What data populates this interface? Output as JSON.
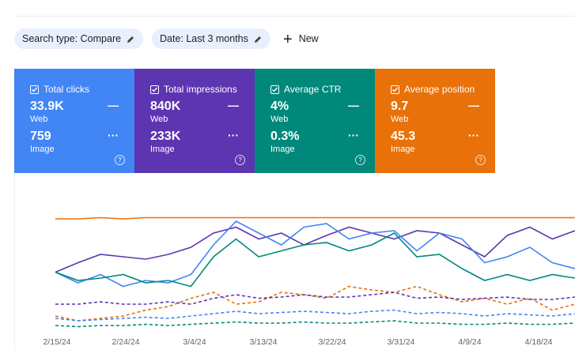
{
  "filters": [
    "Search type: Compare",
    "Date: Last 3 months"
  ],
  "new_button": "New",
  "cards": [
    {
      "label": "Total clicks",
      "color": "#4285f4",
      "items": [
        {
          "value": "33.9K",
          "type": "Web"
        },
        {
          "value": "759",
          "type": "Image"
        }
      ]
    },
    {
      "label": "Total impressions",
      "color": "#5e35b1",
      "items": [
        {
          "value": "840K",
          "type": "Web"
        },
        {
          "value": "233K",
          "type": "Image"
        }
      ]
    },
    {
      "label": "Average CTR",
      "color": "#00897b",
      "items": [
        {
          "value": "4%",
          "type": "Web"
        },
        {
          "value": "0.3%",
          "type": "Image"
        }
      ]
    },
    {
      "label": "Average position",
      "color": "#e8710a",
      "items": [
        {
          "value": "9.7",
          "type": "Web"
        },
        {
          "value": "45.3",
          "type": "Image"
        }
      ]
    }
  ],
  "chart_data": {
    "type": "line",
    "xtick_labels": [
      "2/15/24",
      "2/24/24",
      "3/4/24",
      "3/13/24",
      "3/22/24",
      "3/31/24",
      "4/9/24",
      "4/18/24"
    ],
    "ylim": [
      0,
      100
    ],
    "series": [
      {
        "color": "#e8710a",
        "dashed": false,
        "values": [
          92,
          92,
          93,
          92,
          93,
          93,
          93,
          93,
          93,
          93,
          93,
          93,
          93,
          93,
          93,
          93,
          93,
          93,
          93,
          93,
          93,
          93,
          93,
          93
        ]
      },
      {
        "color": "#5e35b1",
        "dashed": false,
        "values": [
          47,
          55,
          62,
          60,
          58,
          62,
          68,
          80,
          85,
          75,
          80,
          70,
          78,
          85,
          80,
          75,
          82,
          80,
          70,
          60,
          78,
          85,
          75,
          82
        ]
      },
      {
        "color": "#4285f4",
        "dashed": false,
        "values": [
          47,
          38,
          45,
          35,
          40,
          38,
          45,
          70,
          90,
          80,
          70,
          85,
          88,
          75,
          80,
          82,
          65,
          80,
          75,
          55,
          60,
          68,
          55,
          50
        ]
      },
      {
        "color": "#00897b",
        "dashed": false,
        "values": [
          47,
          40,
          42,
          45,
          38,
          40,
          35,
          60,
          75,
          60,
          65,
          70,
          72,
          65,
          70,
          80,
          60,
          62,
          50,
          40,
          45,
          40,
          45,
          42
        ]
      },
      {
        "color": "#e8710a",
        "dashed": true,
        "values": [
          10,
          6,
          8,
          10,
          15,
          18,
          25,
          30,
          20,
          22,
          30,
          28,
          25,
          35,
          32,
          30,
          35,
          28,
          22,
          25,
          20,
          25,
          15,
          20
        ]
      },
      {
        "color": "#5e35b1",
        "dashed": true,
        "values": [
          20,
          20,
          22,
          20,
          20,
          22,
          20,
          25,
          28,
          25,
          26,
          28,
          26,
          26,
          28,
          30,
          25,
          26,
          24,
          25,
          26,
          24,
          24,
          26
        ]
      },
      {
        "color": "#4285f4",
        "dashed": true,
        "values": [
          8,
          6,
          7,
          8,
          9,
          8,
          10,
          12,
          14,
          12,
          13,
          14,
          13,
          12,
          14,
          15,
          12,
          13,
          12,
          10,
          12,
          11,
          10,
          12
        ]
      },
      {
        "color": "#00897b",
        "dashed": true,
        "values": [
          2,
          1,
          2,
          2,
          3,
          2,
          3,
          4,
          5,
          4,
          4,
          5,
          4,
          4,
          5,
          6,
          4,
          4,
          3,
          3,
          4,
          3,
          3,
          4
        ]
      }
    ]
  }
}
